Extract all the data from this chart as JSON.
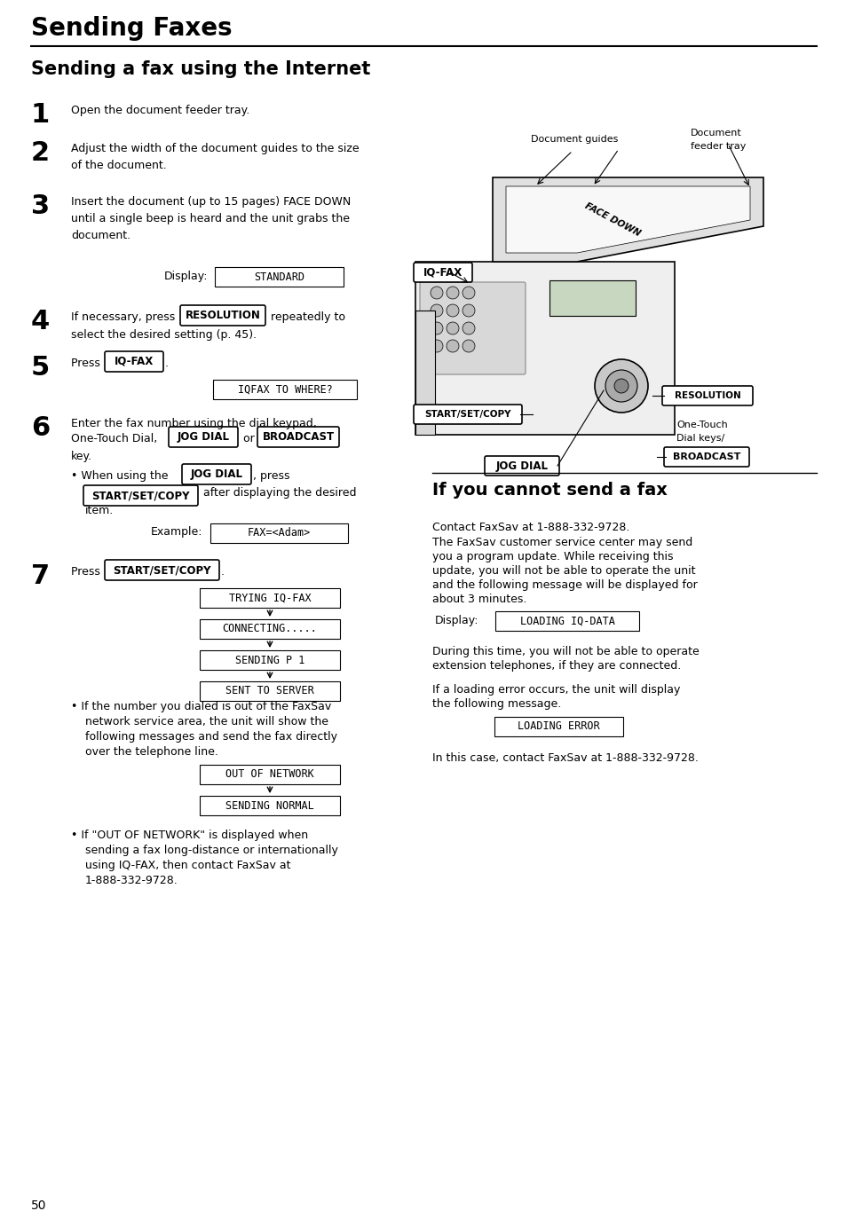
{
  "bg_color": "#ffffff",
  "page_number": "50",
  "chapter_title": "Sending Faxes",
  "section_title": "Sending a fax using the Internet",
  "section2_title": "If you cannot send a fax",
  "display_standard": "STANDARD",
  "display_iqfax": "IQFAX TO WHERE?",
  "display_trying": "TRYING IQ-FAX",
  "display_connecting": "CONNECTING.....",
  "display_sending": "SENDING P 1",
  "display_sent": "SENT TO SERVER",
  "display_out": "OUT OF NETWORK",
  "display_normal": "SENDING NORMAL",
  "display_loading": "LOADING IQ-DATA",
  "display_error": "LOADING ERROR",
  "example_text": "FAX=<Adam>",
  "step1": "Open the document feeder tray.",
  "step2": "Adjust the width of the document guides to the size\nof the document.",
  "step3": "Insert the document (up to 15 pages) FACE DOWN\nuntil a single beep is heard and the unit grabs the\ndocument.",
  "step4_a": "If necessary, press ",
  "step4_b": "RESOLUTION",
  "step4_c": " repeatedly to",
  "step4_d": "select the desired setting (p. 45).",
  "step5_a": "Press ",
  "step5_b": "IQ-FAX",
  "step6_a": "Enter the fax number using the dial keypad,",
  "step6_b": "One-Touch Dial, ",
  "step6_c": "JOG DIAL",
  "step6_d": " or ",
  "step6_e": "BROADCAST",
  "step6_f": "key.",
  "step6_bullet_a": "When using the ",
  "step6_bullet_b": "JOG DIAL",
  "step6_bullet_c": ", press",
  "step6_bullet_d": "START/SET/COPY",
  "step6_bullet_e": " after displaying the desired",
  "step6_bullet_f": "item.",
  "step7_a": "Press ",
  "step7_b": "START/SET/COPY",
  "step7_bullet1_a": "If the number you dialed is out of the FaxSav",
  "step7_bullet1_b": "network service area, the unit will show the",
  "step7_bullet1_c": "following messages and send the fax directly",
  "step7_bullet1_d": "over the telephone line.",
  "step7_bullet2_a": "If \"OUT OF NETWORK\" is displayed when",
  "step7_bullet2_b": "sending a fax long-distance or internationally",
  "step7_bullet2_c": "using IQ-FAX, then contact FaxSav at",
  "step7_bullet2_d": "1-888-332-9728.",
  "s2_line1": "Contact FaxSav at 1-888-332-9728.",
  "s2_line2": "The FaxSav customer service center may send",
  "s2_line3": "you a program update. While receiving this",
  "s2_line4": "update, you will not be able to operate the unit",
  "s2_line5": "and the following message will be displayed for",
  "s2_line6": "about 3 minutes.",
  "s2_line7": "During this time, you will not be able to operate",
  "s2_line8": "extension telephones, if they are connected.",
  "s2_line9": "If a loading error occurs, the unit will display",
  "s2_line10": "the following message.",
  "s2_line11": "In this case, contact FaxSav at 1-888-332-9728.",
  "label_display": "Display:",
  "label_example": "Example:",
  "label_doc_guides": "Document guides",
  "label_doc_tray_a": "Document",
  "label_doc_tray_b": "feeder tray",
  "label_one_touch_a": "One-Touch",
  "label_one_touch_b": "Dial keys/",
  "label_face_down": "FACE DOWN"
}
